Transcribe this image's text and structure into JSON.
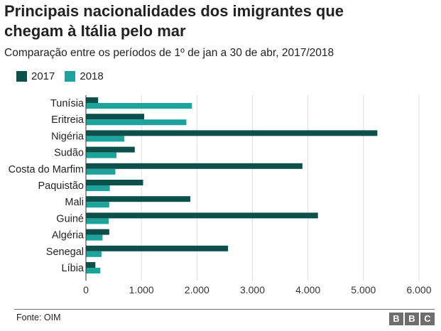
{
  "title_line1": "Principais nacionalidades dos imigrantes que",
  "title_line2": "chegam à Itália pelo mar",
  "subtitle": "Comparação entre os períodos de 1º de jan a 30 de abr, 2017/2018",
  "source": "Fonte: OIM",
  "logo": [
    "B",
    "B",
    "C"
  ],
  "colors": {
    "s2017": "#0d4f4a",
    "s2018": "#1ba39c",
    "grid": "#dcdcdc",
    "axis": "#333333"
  },
  "chart_data": {
    "type": "bar",
    "orientation": "horizontal",
    "categories": [
      "Tunísia",
      "Eritreia",
      "Nigéria",
      "Sudão",
      "Costa do Marfim",
      "Paquistão",
      "Mali",
      "Guiné",
      "Algéria",
      "Senegal",
      "Líbia"
    ],
    "series": [
      {
        "name": "2017",
        "values": [
          220,
          1050,
          5250,
          880,
          3900,
          1030,
          1880,
          4180,
          420,
          2560,
          170
        ]
      },
      {
        "name": "2018",
        "values": [
          1910,
          1810,
          690,
          550,
          530,
          430,
          420,
          410,
          300,
          280,
          260
        ]
      }
    ],
    "xlim": [
      0,
      6000
    ],
    "xticks": [
      0,
      1000,
      2000,
      3000,
      4000,
      5000,
      6000
    ],
    "xtick_labels": [
      "0",
      "1.000",
      "2.000",
      "3.000",
      "4.000",
      "5.000",
      "6.000"
    ],
    "grid": true,
    "legend_position": "top-left"
  }
}
